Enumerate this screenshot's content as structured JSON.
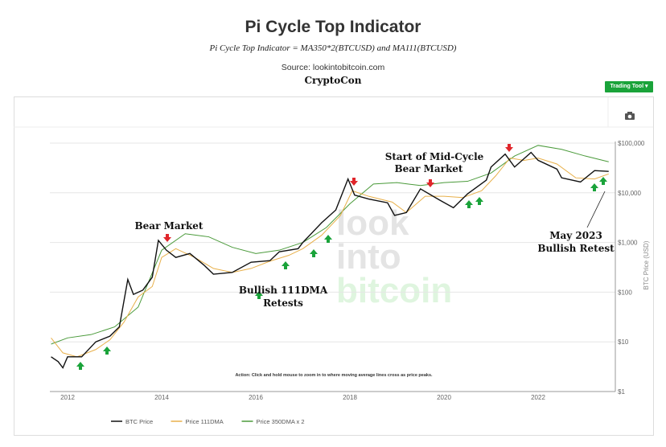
{
  "header": {
    "title": "Pi Cycle Top Indicator",
    "formula": "Pi Cycle Top Indicator = MA350*2(BTCUSD) and MA111(BTCUSD)",
    "source": "Source: lookintobitcoin.com",
    "author": "CryptoCon"
  },
  "toolbar": {
    "trading_tool_label": "Trading Tool ▾",
    "camera_icon": "camera-icon"
  },
  "watermark": [
    "look",
    "into",
    "bitcoin"
  ],
  "action_note": "Action: Click and hold mouse to zoom in to where moving average lines cross as price peaks.",
  "annotations": {
    "bear_market": "Bear Market",
    "mid_cycle": [
      "Start of Mid-Cycle",
      "Bear Market"
    ],
    "retests": [
      "Bullish 111DMA",
      "Retests"
    ],
    "may2023": [
      "May 2023",
      "Bullish Retest"
    ]
  },
  "chart_data": {
    "type": "line",
    "title": "Pi Cycle Top Indicator",
    "ylabel": "BTC Price (USD)",
    "yscale": "log",
    "ylim": [
      1,
      100000
    ],
    "xlim": [
      2011.6,
      2023.65
    ],
    "y_ticks": [
      "$1",
      "$10",
      "$100",
      "$1,000",
      "$10,000",
      "$100,000"
    ],
    "x_ticks": [
      "2012",
      "2014",
      "2016",
      "2018",
      "2020",
      "2022"
    ],
    "grid": "horizontal",
    "legend": "bottom",
    "series": [
      {
        "name": "BTC Price",
        "color": "#111111",
        "x": [
          2011.65,
          2011.8,
          2011.9,
          2012.0,
          2012.3,
          2012.6,
          2012.9,
          2013.1,
          2013.28,
          2013.4,
          2013.6,
          2013.8,
          2013.93,
          2014.1,
          2014.3,
          2014.6,
          2014.9,
          2015.1,
          2015.5,
          2015.9,
          2016.3,
          2016.5,
          2016.9,
          2017.0,
          2017.4,
          2017.7,
          2017.96,
          2018.1,
          2018.4,
          2018.8,
          2018.95,
          2019.2,
          2019.5,
          2019.9,
          2020.2,
          2020.5,
          2020.9,
          2021.0,
          2021.3,
          2021.5,
          2021.85,
          2022.0,
          2022.4,
          2022.5,
          2022.9,
          2023.2,
          2023.5
        ],
        "values": [
          5,
          4,
          3,
          5,
          5,
          10,
          13,
          20,
          180,
          90,
          110,
          200,
          1100,
          700,
          500,
          600,
          350,
          230,
          250,
          400,
          430,
          650,
          750,
          1000,
          2500,
          4500,
          19000,
          9000,
          7500,
          6300,
          3500,
          4000,
          12000,
          7200,
          5000,
          9500,
          18000,
          33000,
          60000,
          33000,
          65000,
          45000,
          30000,
          20000,
          16500,
          28000,
          27000
        ]
      },
      {
        "name": "Price 111DMA",
        "color": "#e8b04a",
        "x": [
          2011.65,
          2011.9,
          2012.2,
          2012.6,
          2012.9,
          2013.2,
          2013.5,
          2013.8,
          2014.0,
          2014.3,
          2014.7,
          2015.1,
          2015.5,
          2015.9,
          2016.3,
          2016.7,
          2017.0,
          2017.4,
          2017.8,
          2018.05,
          2018.4,
          2018.9,
          2019.2,
          2019.6,
          2020.0,
          2020.4,
          2020.8,
          2021.1,
          2021.4,
          2021.7,
          2022.0,
          2022.4,
          2022.8,
          2023.2,
          2023.5
        ],
        "values": [
          12,
          6,
          5,
          7,
          11,
          25,
          80,
          130,
          500,
          750,
          500,
          300,
          250,
          300,
          420,
          550,
          750,
          1400,
          3500,
          11000,
          8500,
          6500,
          4000,
          8500,
          8500,
          8000,
          11000,
          22000,
          50000,
          45000,
          50000,
          38000,
          20000,
          19000,
          24000
        ]
      },
      {
        "name": "Price 350DMA x 2",
        "color": "#4a9a3a",
        "x": [
          2011.65,
          2012.0,
          2012.5,
          2013.0,
          2013.5,
          2014.0,
          2014.5,
          2015.0,
          2015.5,
          2016.0,
          2016.5,
          2017.0,
          2017.5,
          2018.0,
          2018.5,
          2019.0,
          2019.5,
          2020.0,
          2020.5,
          2021.0,
          2021.5,
          2022.0,
          2022.5,
          2023.0,
          2023.5
        ],
        "values": [
          9,
          12,
          14,
          20,
          50,
          700,
          1500,
          1300,
          800,
          600,
          700,
          1000,
          2000,
          6000,
          15000,
          16000,
          14000,
          16000,
          17000,
          25000,
          55000,
          90000,
          75000,
          55000,
          42000
        ]
      }
    ]
  }
}
